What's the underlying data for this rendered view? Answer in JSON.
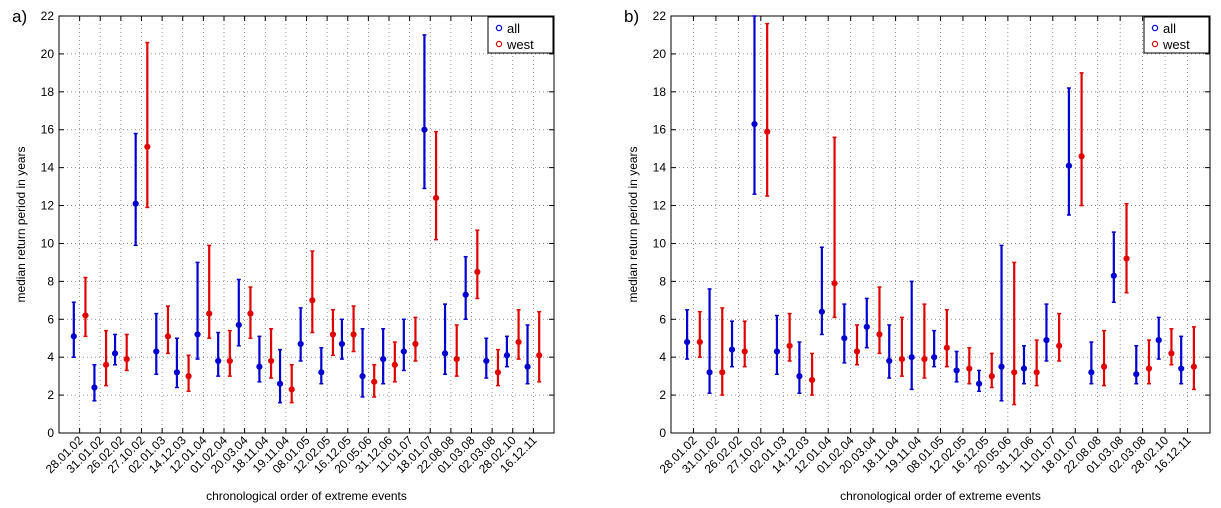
{
  "colors": {
    "all": "#0000d0",
    "west": "#e00000"
  },
  "chart_data": [
    {
      "type": "errorbar",
      "panel_label": "a)",
      "xlabel": "chronological order of extreme events",
      "ylabel": "median return period in years",
      "ylim": [
        0,
        22
      ],
      "yticks": [
        0,
        2,
        4,
        6,
        8,
        10,
        12,
        14,
        16,
        18,
        20,
        22
      ],
      "grid": "dotted",
      "legend_position": "top-right",
      "categories": [
        "28.01.02",
        "31.01.02",
        "26.02.02",
        "27.10.02",
        "02.01.03",
        "14.12.03",
        "12.01.04",
        "01.02.04",
        "20.03.04",
        "18.11.04",
        "19.11.04",
        "08.01.05",
        "12.02.05",
        "16.12.05",
        "20.05.06",
        "31.12.06",
        "11.01.07",
        "18.01.07",
        "22.08.08",
        "01.03.08",
        "02.03.08",
        "28.02.10",
        "16.12.11"
      ],
      "series": [
        {
          "name": "all",
          "median": [
            5.1,
            2.4,
            4.2,
            12.1,
            4.3,
            3.2,
            5.2,
            3.8,
            5.7,
            3.5,
            2.6,
            4.7,
            3.2,
            4.7,
            3.0,
            3.9,
            4.3,
            16.0,
            4.2,
            7.3,
            3.8,
            4.1,
            3.5
          ],
          "lower": [
            4.0,
            1.7,
            3.6,
            9.9,
            3.1,
            2.4,
            3.9,
            3.0,
            4.6,
            2.7,
            1.6,
            3.8,
            2.6,
            3.9,
            1.9,
            2.6,
            3.3,
            12.9,
            3.1,
            6.0,
            2.9,
            3.5,
            2.6
          ],
          "upper": [
            6.9,
            3.6,
            5.2,
            15.8,
            6.3,
            5.0,
            9.0,
            5.3,
            8.1,
            5.1,
            4.4,
            6.6,
            4.5,
            6.0,
            5.5,
            5.5,
            6.0,
            21.0,
            6.8,
            9.3,
            5.0,
            5.1,
            5.7
          ]
        },
        {
          "name": "west",
          "median": [
            6.2,
            3.6,
            3.9,
            15.1,
            5.1,
            3.0,
            6.3,
            3.8,
            6.3,
            3.8,
            2.3,
            7.0,
            5.2,
            5.2,
            2.7,
            3.6,
            4.7,
            12.4,
            3.9,
            8.5,
            3.2,
            4.8,
            4.1
          ],
          "lower": [
            5.1,
            2.5,
            3.3,
            11.9,
            4.2,
            2.2,
            5.0,
            3.0,
            5.0,
            2.9,
            1.6,
            5.3,
            4.1,
            4.3,
            1.9,
            2.7,
            3.8,
            10.2,
            3.0,
            7.1,
            2.5,
            3.9,
            2.7
          ],
          "upper": [
            8.2,
            5.4,
            5.2,
            20.6,
            6.7,
            4.1,
            9.9,
            5.4,
            7.7,
            5.5,
            3.6,
            9.6,
            6.5,
            6.7,
            3.6,
            4.8,
            6.1,
            15.9,
            5.7,
            10.7,
            4.4,
            6.5,
            6.4
          ]
        }
      ]
    },
    {
      "type": "errorbar",
      "panel_label": "b)",
      "xlabel": "chronological order of extreme events",
      "ylabel": "median return period in years",
      "ylim": [
        0,
        22
      ],
      "yticks": [
        0,
        2,
        4,
        6,
        8,
        10,
        12,
        14,
        16,
        18,
        20,
        22
      ],
      "grid": "dotted",
      "legend_position": "top-right",
      "categories": [
        "28.01.02",
        "31.01.02",
        "26.02.02",
        "27.10.02",
        "02.01.03",
        "14.12.03",
        "12.01.04",
        "01.02.04",
        "20.03.04",
        "18.11.04",
        "19.11.04",
        "08.01.05",
        "12.02.05",
        "16.12.05",
        "20.05.06",
        "31.12.06",
        "11.01.07",
        "18.01.07",
        "22.08.08",
        "01.03.08",
        "02.03.08",
        "28.02.10",
        "16.12.11"
      ],
      "series": [
        {
          "name": "all",
          "median": [
            4.8,
            3.2,
            4.4,
            16.3,
            4.3,
            3.0,
            6.4,
            5.0,
            5.6,
            3.8,
            4.0,
            4.0,
            3.3,
            2.6,
            3.5,
            3.4,
            4.9,
            14.1,
            3.2,
            8.3,
            3.1,
            4.9,
            3.4
          ],
          "lower": [
            3.9,
            2.1,
            3.5,
            12.6,
            3.1,
            2.1,
            5.2,
            3.7,
            4.5,
            2.9,
            2.3,
            3.5,
            2.7,
            2.2,
            1.7,
            2.6,
            3.8,
            11.5,
            2.6,
            6.9,
            2.6,
            3.9,
            2.6
          ],
          "upper": [
            6.5,
            7.6,
            5.9,
            22.0,
            6.2,
            4.8,
            9.8,
            6.8,
            7.1,
            5.7,
            8.0,
            5.4,
            4.3,
            3.3,
            9.9,
            4.6,
            6.8,
            18.2,
            4.8,
            10.6,
            4.6,
            6.1,
            5.1
          ]
        },
        {
          "name": "west",
          "median": [
            4.8,
            3.2,
            4.3,
            15.9,
            4.6,
            2.8,
            7.9,
            4.3,
            5.2,
            3.9,
            3.9,
            4.5,
            3.4,
            3.0,
            3.2,
            3.2,
            4.6,
            14.6,
            3.5,
            9.2,
            3.4,
            4.2,
            3.5
          ],
          "lower": [
            4.0,
            2.0,
            3.5,
            12.5,
            3.8,
            2.0,
            6.1,
            3.6,
            4.2,
            3.0,
            2.9,
            3.5,
            2.6,
            2.4,
            1.5,
            2.5,
            3.8,
            12.0,
            2.5,
            7.4,
            2.6,
            3.6,
            2.3
          ],
          "upper": [
            6.4,
            6.6,
            5.9,
            21.6,
            6.3,
            4.2,
            15.6,
            5.7,
            7.7,
            6.1,
            6.8,
            6.5,
            4.5,
            4.2,
            9.0,
            4.9,
            6.3,
            19.0,
            5.4,
            12.1,
            4.9,
            5.5,
            5.6
          ]
        }
      ]
    }
  ]
}
